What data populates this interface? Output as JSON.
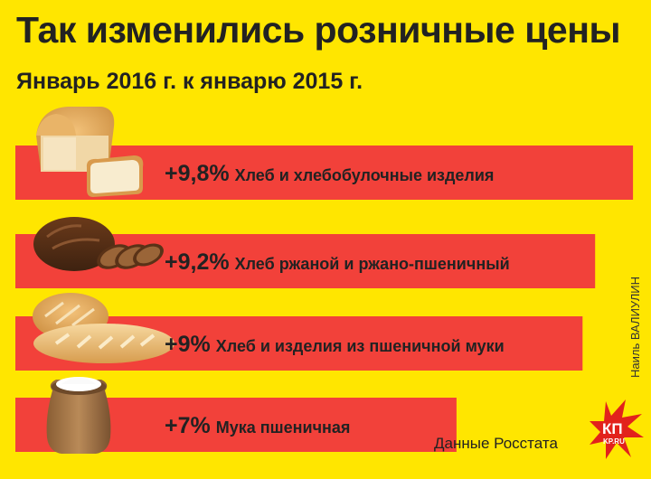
{
  "header": {
    "title": "Так изменились розничные цены",
    "subtitle": "Январь 2016 г. к январю 2015 г."
  },
  "chart_data": {
    "type": "bar",
    "categories": [
      "Хлеб и хлебобулочные изделия",
      "Хлеб ржаной и ржано-пшеничный",
      "Хлеб и изделия из пшеничной муки",
      "Мука пшеничная"
    ],
    "values": [
      9.8,
      9.2,
      9.0,
      7.0
    ],
    "value_labels": [
      "+9,8%",
      "+9,2%",
      "+9%",
      "+7%"
    ],
    "unit": "%",
    "orientation": "horizontal",
    "bar_color": "#F2413A"
  },
  "icons": [
    "white-bread-icon",
    "rye-bread-icon",
    "wheat-loaf-icon",
    "flour-sack-icon"
  ],
  "footer": {
    "source": "Данные Росстата",
    "credit": "Наиль ВАЛИУЛИН",
    "logo_top": "КП",
    "logo_bottom": "KP.RU"
  },
  "colors": {
    "background": "#FFE600",
    "bar": "#F2413A",
    "logo": "#E2221C"
  }
}
